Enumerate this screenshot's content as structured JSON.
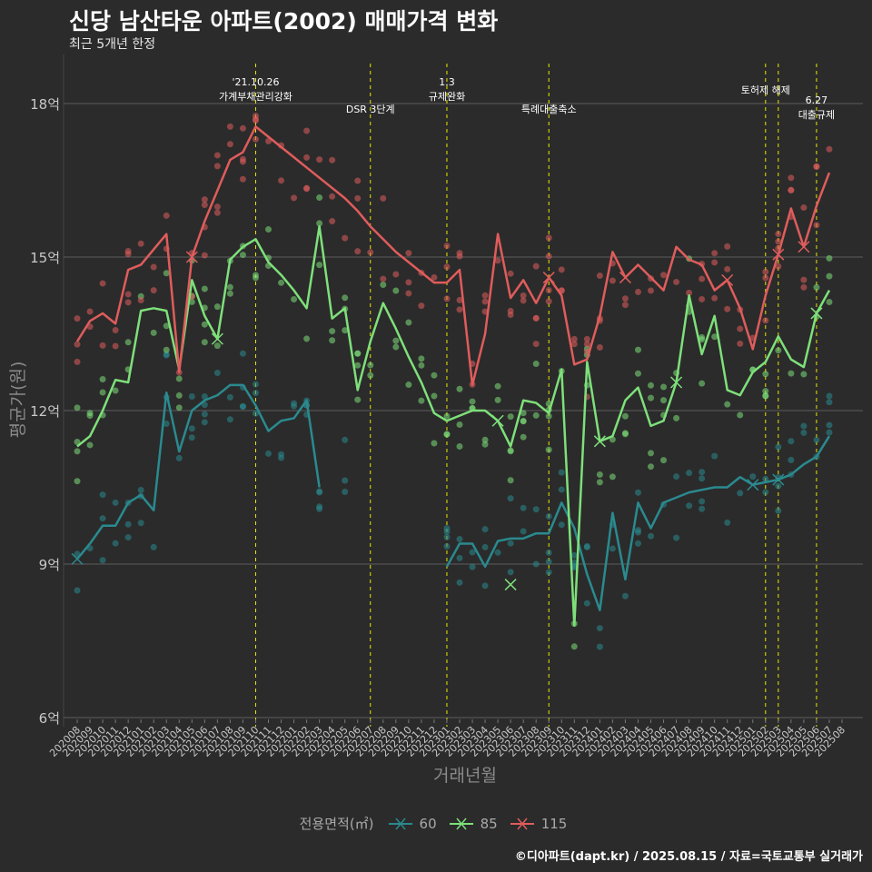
{
  "title": "신당 남산타운 아파트(2002) 매매가격 변화",
  "subtitle": "최근 5개년 한정",
  "caption": "©디아파트(dapt.kr) / 2025.08.15 / 자료=국토교통부 실거래가",
  "legend": {
    "title": "전용면적(㎡)",
    "items": [
      "60",
      "85",
      "115"
    ]
  },
  "colors": {
    "s60": "#2a8a8f",
    "s85": "#7ee07a",
    "s115": "#e05c5c",
    "event": "#e8e800",
    "grid": "#5e5e5e",
    "axis_text": "#c8c8c8"
  },
  "chart_data": {
    "type": "line",
    "xlabel": "거래년월",
    "ylabel": "평균가(원)",
    "ylim": [
      6,
      18.8
    ],
    "yticks": [
      6,
      9,
      12,
      15,
      18
    ],
    "ytick_labels": [
      "6억",
      "9억",
      "12억",
      "15억",
      "18억"
    ],
    "x": [
      "202008",
      "202009",
      "202010",
      "202011",
      "202012",
      "202101",
      "202102",
      "202103",
      "202104",
      "202105",
      "202106",
      "202107",
      "202108",
      "202109",
      "202110",
      "202111",
      "202112",
      "202201",
      "202202",
      "202203",
      "202204",
      "202205",
      "202206",
      "202207",
      "202208",
      "202209",
      "202210",
      "202211",
      "202212",
      "202301",
      "202302",
      "202303",
      "202304",
      "202305",
      "202306",
      "202307",
      "202308",
      "202309",
      "202310",
      "202311",
      "202312",
      "202401",
      "202402",
      "202403",
      "202404",
      "202405",
      "202406",
      "202407",
      "202408",
      "202409",
      "202410",
      "202411",
      "202412",
      "202501",
      "202502",
      "202503",
      "202504",
      "202505",
      "202506",
      "202507",
      "202508"
    ],
    "events": [
      {
        "x": "202110",
        "lines": [
          "'21.10.26",
          "가계부채관리강화"
        ]
      },
      {
        "x": "202207",
        "lines": [
          "DSR 3단계"
        ]
      },
      {
        "x": "202301",
        "lines": [
          "1.3",
          "규제완화"
        ]
      },
      {
        "x": "202309",
        "lines": [
          "특례대출축소"
        ]
      },
      {
        "x": "202502",
        "lines": [
          "토허제 해제"
        ]
      },
      {
        "x": "202503",
        "lines": [
          ""
        ]
      },
      {
        "x": "202506",
        "lines": [
          "6.27",
          "대출규제"
        ]
      }
    ],
    "series": [
      {
        "name": "60",
        "values": [
          9.1,
          9.4,
          9.75,
          9.75,
          10.2,
          10.35,
          10.05,
          12.35,
          11.2,
          12.0,
          12.2,
          12.3,
          12.5,
          12.5,
          12.1,
          11.6,
          11.8,
          11.85,
          12.2,
          10.5,
          null,
          11.0,
          null,
          null,
          null,
          null,
          null,
          null,
          null,
          8.95,
          9.4,
          9.4,
          8.95,
          9.45,
          9.5,
          9.5,
          9.6,
          9.6,
          10.2,
          9.7,
          8.8,
          8.1,
          10.0,
          8.7,
          10.2,
          9.7,
          10.2,
          10.3,
          10.4,
          10.45,
          10.5,
          10.5,
          10.7,
          10.55,
          10.6,
          10.65,
          10.75,
          10.95,
          11.1,
          11.5,
          null
        ]
      },
      {
        "name": "85",
        "values": [
          11.3,
          11.5,
          12.0,
          12.6,
          12.55,
          13.95,
          14.0,
          13.95,
          12.8,
          14.55,
          13.85,
          13.4,
          14.95,
          15.2,
          15.35,
          14.9,
          14.65,
          14.35,
          14.0,
          15.6,
          13.8,
          14.0,
          12.4,
          13.35,
          14.1,
          13.6,
          13.05,
          12.55,
          11.95,
          11.8,
          11.9,
          12.0,
          12.0,
          11.8,
          11.3,
          12.2,
          12.15,
          11.95,
          12.8,
          7.8,
          12.95,
          11.4,
          11.5,
          12.2,
          12.45,
          11.7,
          11.8,
          12.55,
          14.25,
          13.1,
          13.85,
          12.4,
          12.3,
          12.75,
          12.95,
          13.45,
          13.0,
          12.85,
          13.9,
          14.35,
          null
        ]
      },
      {
        "name": "115",
        "values": [
          13.35,
          13.75,
          13.9,
          13.7,
          14.75,
          14.85,
          15.15,
          15.45,
          12.75,
          15.0,
          15.7,
          16.3,
          16.9,
          17.05,
          17.55,
          17.35,
          17.15,
          16.95,
          16.75,
          16.55,
          16.35,
          16.15,
          15.9,
          15.6,
          15.35,
          15.1,
          14.9,
          14.7,
          14.5,
          14.5,
          14.75,
          12.5,
          13.5,
          15.45,
          14.2,
          14.55,
          14.1,
          14.6,
          14.25,
          12.9,
          13.0,
          13.85,
          15.1,
          14.6,
          14.85,
          14.6,
          14.35,
          15.2,
          14.95,
          14.85,
          14.35,
          14.55,
          14.0,
          13.2,
          14.25,
          15.05,
          15.95,
          15.2,
          16.0,
          16.65,
          null
        ]
      }
    ]
  }
}
